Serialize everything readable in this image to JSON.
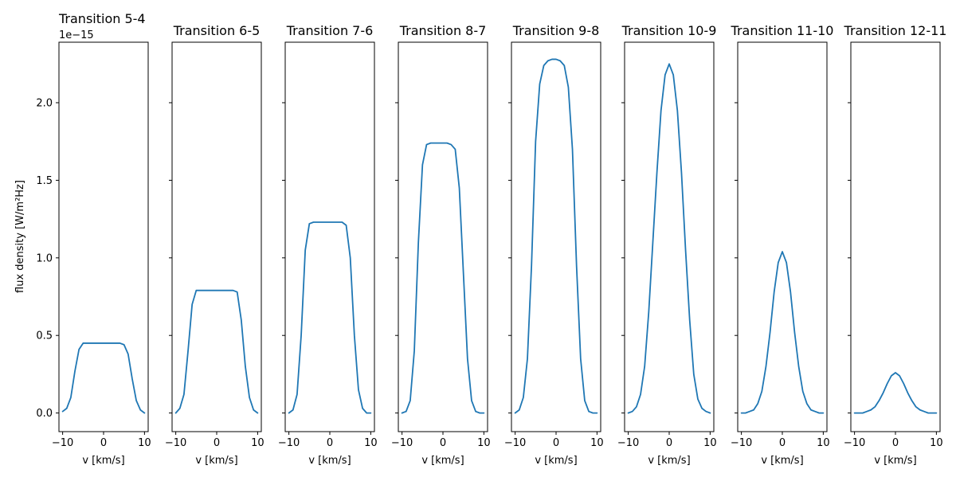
{
  "figure": {
    "ylabel": "flux density [W/m²Hz]",
    "offset_text": "1e−15",
    "line_color": "#1f77b4"
  },
  "chart_data": [
    {
      "type": "line",
      "title": "Transition 5-4",
      "xlabel": "v [km/s]",
      "ylabel": "flux density [W/m²Hz]",
      "x_ticks": [
        -10,
        0,
        10
      ],
      "y_ticks": [
        0.0,
        0.5,
        1.0,
        1.5,
        2.0
      ],
      "y_offset_label": "1e−15",
      "xlim": [
        -10.9,
        10.9
      ],
      "ylim": [
        -0.12,
        2.39
      ],
      "grid": false,
      "series": [
        {
          "x": [
            -10,
            -9,
            -8,
            -7,
            -6,
            -5,
            -4,
            -3,
            -2,
            -1,
            0,
            1,
            2,
            3,
            4,
            5,
            6,
            7,
            8,
            9,
            10
          ],
          "y": [
            0.01,
            0.03,
            0.1,
            0.27,
            0.41,
            0.45,
            0.45,
            0.45,
            0.45,
            0.45,
            0.45,
            0.45,
            0.45,
            0.45,
            0.45,
            0.44,
            0.38,
            0.22,
            0.08,
            0.02,
            0.0
          ]
        }
      ]
    },
    {
      "type": "line",
      "title": "Transition 6-5",
      "xlabel": "v [km/s]",
      "x_ticks": [
        -10,
        0,
        10
      ],
      "series": [
        {
          "x": [
            -10,
            -9,
            -8,
            -7,
            -6,
            -5,
            -4,
            -3,
            -2,
            -1,
            0,
            1,
            2,
            3,
            4,
            5,
            6,
            7,
            8,
            9,
            10
          ],
          "y": [
            0.0,
            0.03,
            0.12,
            0.4,
            0.7,
            0.79,
            0.79,
            0.79,
            0.79,
            0.79,
            0.79,
            0.79,
            0.79,
            0.79,
            0.79,
            0.78,
            0.6,
            0.3,
            0.1,
            0.02,
            0.0
          ]
        }
      ]
    },
    {
      "type": "line",
      "title": "Transition 7-6",
      "xlabel": "v [km/s]",
      "x_ticks": [
        -10,
        0,
        10
      ],
      "series": [
        {
          "x": [
            -10,
            -9,
            -8,
            -7,
            -6,
            -5,
            -4,
            -3,
            -2,
            -1,
            0,
            1,
            2,
            3,
            4,
            5,
            6,
            7,
            8,
            9,
            10
          ],
          "y": [
            0.0,
            0.02,
            0.12,
            0.5,
            1.05,
            1.22,
            1.23,
            1.23,
            1.23,
            1.23,
            1.23,
            1.23,
            1.23,
            1.23,
            1.21,
            1.0,
            0.5,
            0.15,
            0.03,
            0.0,
            0.0
          ]
        }
      ]
    },
    {
      "type": "line",
      "title": "Transition 8-7",
      "xlabel": "v [km/s]",
      "x_ticks": [
        -10,
        0,
        10
      ],
      "series": [
        {
          "x": [
            -10,
            -9,
            -8,
            -7,
            -6,
            -5,
            -4,
            -3,
            -2,
            -1,
            0,
            1,
            2,
            3,
            4,
            5,
            6,
            7,
            8,
            9,
            10
          ],
          "y": [
            0.0,
            0.01,
            0.08,
            0.4,
            1.1,
            1.6,
            1.73,
            1.74,
            1.74,
            1.74,
            1.74,
            1.74,
            1.73,
            1.7,
            1.45,
            0.9,
            0.35,
            0.08,
            0.01,
            0.0,
            0.0
          ]
        }
      ]
    },
    {
      "type": "line",
      "title": "Transition 9-8",
      "xlabel": "v [km/s]",
      "x_ticks": [
        -10,
        0,
        10
      ],
      "series": [
        {
          "x": [
            -10,
            -9,
            -8,
            -7,
            -6,
            -5,
            -4,
            -3,
            -2,
            -1,
            0,
            1,
            2,
            3,
            4,
            5,
            6,
            7,
            8,
            9,
            10
          ],
          "y": [
            0.0,
            0.02,
            0.1,
            0.35,
            0.95,
            1.75,
            2.12,
            2.24,
            2.27,
            2.28,
            2.28,
            2.27,
            2.24,
            2.1,
            1.7,
            0.95,
            0.35,
            0.08,
            0.01,
            0.0,
            0.0
          ]
        }
      ]
    },
    {
      "type": "line",
      "title": "Transition 10-9",
      "xlabel": "v [km/s]",
      "x_ticks": [
        -10,
        0,
        10
      ],
      "series": [
        {
          "x": [
            -10,
            -9,
            -8,
            -7,
            -6,
            -5,
            -4,
            -3,
            -2,
            -1,
            0,
            1,
            2,
            3,
            4,
            5,
            6,
            7,
            8,
            9,
            10
          ],
          "y": [
            0.0,
            0.01,
            0.04,
            0.12,
            0.3,
            0.65,
            1.1,
            1.55,
            1.95,
            2.18,
            2.25,
            2.18,
            1.95,
            1.55,
            1.05,
            0.6,
            0.25,
            0.09,
            0.03,
            0.01,
            0.0
          ]
        }
      ]
    },
    {
      "type": "line",
      "title": "Transition 11-10",
      "xlabel": "v [km/s]",
      "x_ticks": [
        -10,
        0,
        10
      ],
      "series": [
        {
          "x": [
            -10,
            -9,
            -8,
            -7,
            -6,
            -5,
            -4,
            -3,
            -2,
            -1,
            0,
            1,
            2,
            3,
            4,
            5,
            6,
            7,
            8,
            9,
            10
          ],
          "y": [
            0.0,
            0.0,
            0.01,
            0.02,
            0.06,
            0.14,
            0.3,
            0.52,
            0.78,
            0.97,
            1.04,
            0.97,
            0.78,
            0.52,
            0.3,
            0.14,
            0.06,
            0.02,
            0.01,
            0.0,
            0.0
          ]
        }
      ]
    },
    {
      "type": "line",
      "title": "Transition 12-11",
      "xlabel": "v [km/s]",
      "x_ticks": [
        -10,
        0,
        10
      ],
      "series": [
        {
          "x": [
            -10,
            -9,
            -8,
            -7,
            -6,
            -5,
            -4,
            -3,
            -2,
            -1,
            0,
            1,
            2,
            3,
            4,
            5,
            6,
            7,
            8,
            9,
            10
          ],
          "y": [
            0.0,
            0.0,
            0.0,
            0.01,
            0.02,
            0.04,
            0.08,
            0.13,
            0.19,
            0.24,
            0.26,
            0.24,
            0.19,
            0.13,
            0.08,
            0.04,
            0.02,
            0.01,
            0.0,
            0.0,
            0.0
          ]
        }
      ]
    }
  ]
}
